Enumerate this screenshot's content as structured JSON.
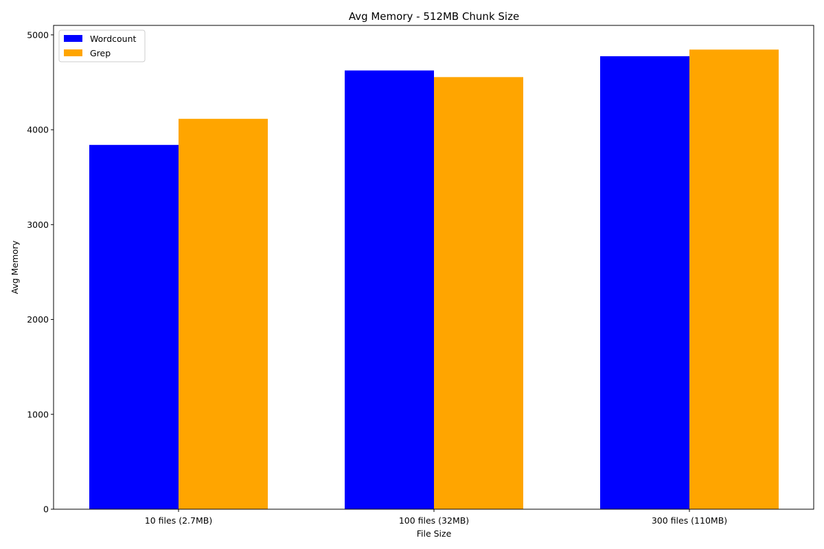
{
  "chart_data": {
    "type": "bar",
    "title": "Avg Memory - 512MB Chunk Size",
    "xlabel": "File Size",
    "ylabel": "Avg Memory",
    "categories": [
      "10 files (2.7MB)",
      "100 files (32MB)",
      "300 files (110MB)"
    ],
    "series": [
      {
        "name": "Wordcount",
        "color": "#0000ff",
        "values": [
          3840,
          4625,
          4775
        ]
      },
      {
        "name": "Grep",
        "color": "#ffa500",
        "values": [
          4115,
          4555,
          4845
        ]
      }
    ],
    "ylim": [
      0,
      5100
    ],
    "yticks": [
      0,
      1000,
      2000,
      3000,
      4000,
      5000
    ],
    "grid": false,
    "legend_position": "top-left"
  }
}
